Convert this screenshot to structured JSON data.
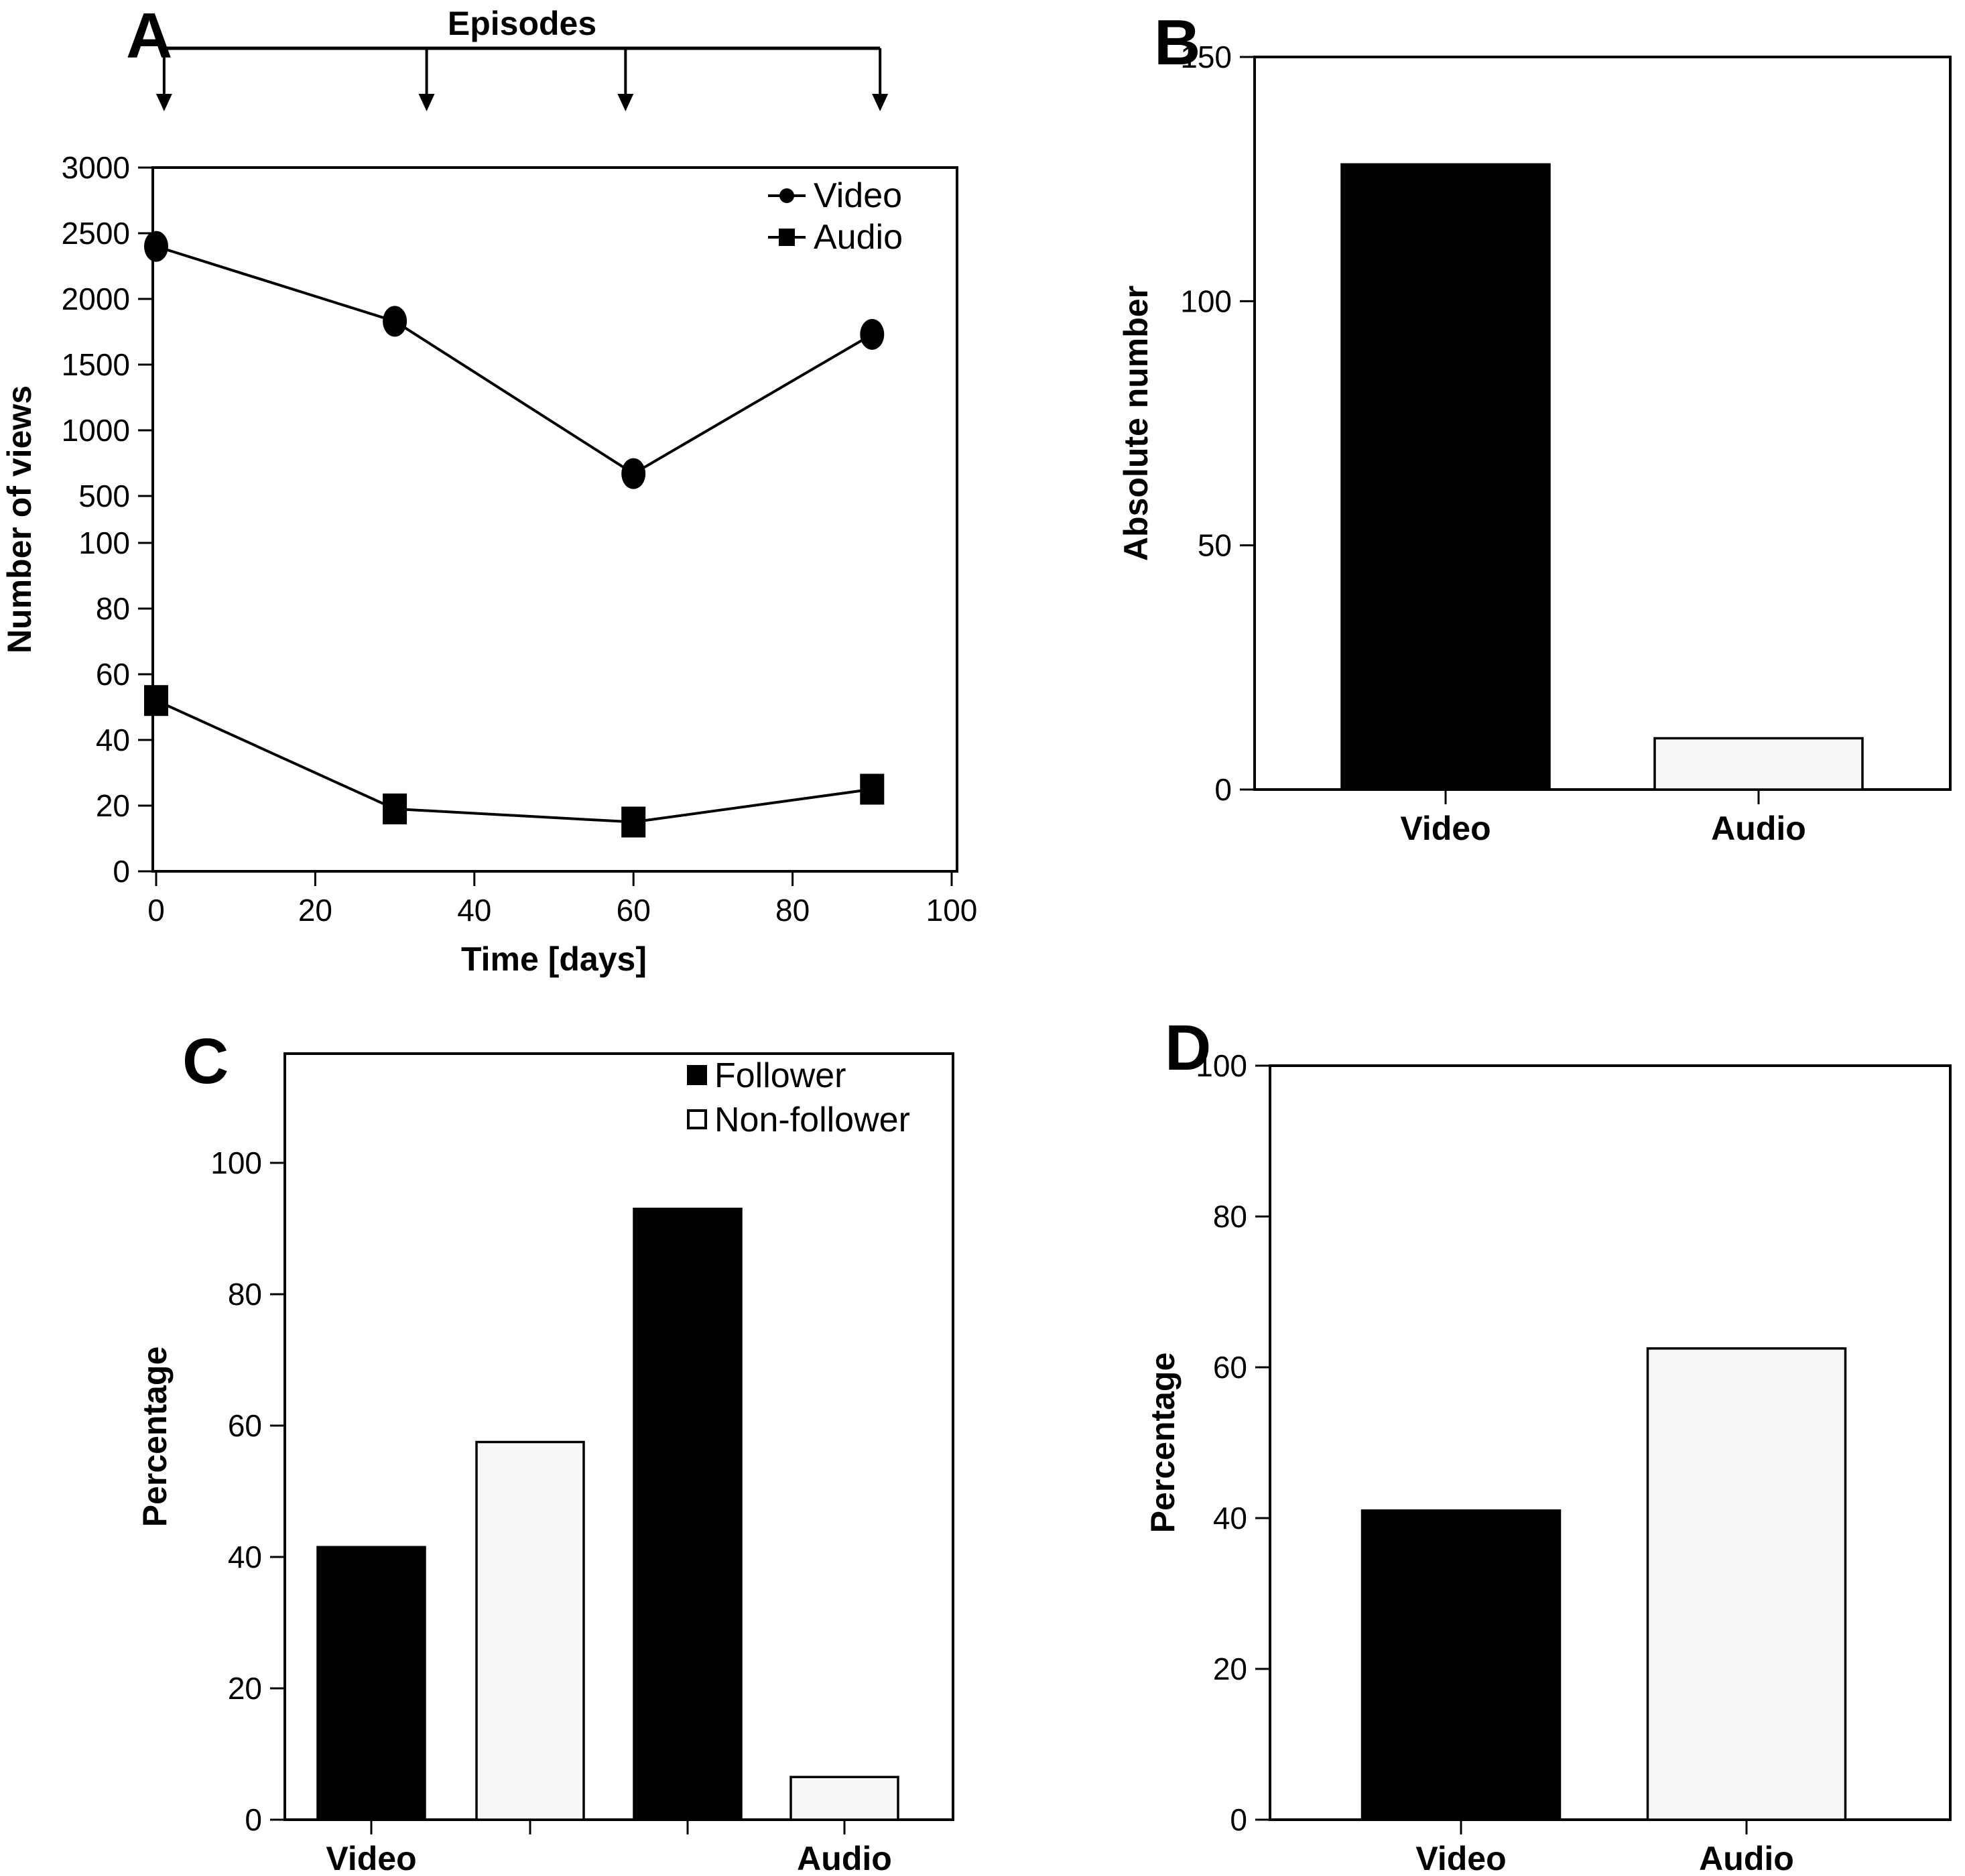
{
  "colors": {
    "ink": "#000000",
    "bar_filled": "#000000",
    "bar_open": "#f7f7f7",
    "background": "#ffffff"
  },
  "panels": {
    "a": {
      "label": "A"
    },
    "b": {
      "label": "B"
    },
    "c": {
      "label": "C"
    },
    "d": {
      "label": "D"
    }
  },
  "chart_data": [
    {
      "panel": "A",
      "type": "line",
      "annotation": {
        "label": "Episodes",
        "arrow_days": [
          1,
          34,
          59,
          91
        ]
      },
      "x": [
        0,
        30,
        60,
        90
      ],
      "series": [
        {
          "name": "Video",
          "marker": "circle",
          "values": [
            2400,
            1830,
            670,
            1730
          ]
        },
        {
          "name": "Audio",
          "marker": "square",
          "values": [
            52,
            19,
            15,
            25
          ]
        }
      ],
      "xlabel": "Time [days]",
      "ylabel": "Number of views",
      "xlim": [
        0,
        100
      ],
      "x_ticks": [
        0,
        20,
        40,
        60,
        80,
        100
      ],
      "y_axis_break": true,
      "y_segments": [
        {
          "range": [
            0,
            100
          ],
          "ticks": [
            0,
            20,
            40,
            60,
            80,
            100
          ]
        },
        {
          "range": [
            500,
            3000
          ],
          "ticks": [
            500,
            1000,
            1500,
            2000,
            2500,
            3000
          ]
        }
      ],
      "legend": {
        "position": "top-right",
        "entries": [
          "Video",
          "Audio"
        ]
      },
      "grid": false
    },
    {
      "panel": "B",
      "type": "bar",
      "categories": [
        "Video",
        "Audio"
      ],
      "values": [
        128,
        10.5
      ],
      "bar_styles": [
        "filled",
        "open"
      ],
      "xlabel": "",
      "ylabel": "Absolute number",
      "ylim": [
        0,
        150
      ],
      "y_ticks": [
        0,
        50,
        100,
        150
      ],
      "grid": false
    },
    {
      "panel": "C",
      "type": "bar",
      "group_labels": [
        "Video",
        "Audio"
      ],
      "series": [
        {
          "name": "Follower",
          "style": "filled",
          "values": [
            41.5,
            93
          ]
        },
        {
          "name": "Non-follower",
          "style": "open",
          "values": [
            57.5,
            6.5
          ]
        }
      ],
      "bar_order_note": "Video-Follower, Video-Non-follower, Audio-Follower, Audio-Non-follower",
      "xlabel": "",
      "ylabel": "Percentage",
      "ylim": [
        0,
        116
      ],
      "y_ticks": [
        0,
        20,
        40,
        60,
        80,
        100
      ],
      "legend": {
        "position": "top-right",
        "entries": [
          "Follower",
          "Non-follower"
        ]
      },
      "grid": false
    },
    {
      "panel": "D",
      "type": "bar",
      "categories": [
        "Video",
        "Audio"
      ],
      "values": [
        41,
        62.5
      ],
      "bar_styles": [
        "filled",
        "open"
      ],
      "xlabel": "",
      "ylabel": "Percentage",
      "ylim": [
        0,
        100
      ],
      "y_ticks": [
        0,
        20,
        40,
        60,
        80,
        100
      ],
      "grid": false
    }
  ]
}
